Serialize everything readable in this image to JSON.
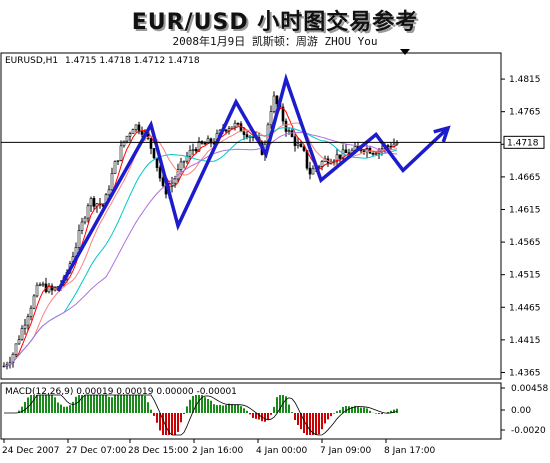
{
  "header": {
    "title": "EUR/USD  小时图交易参考",
    "subtitle": "2008年1月9日   凯斯顿：周游 ZHOU You"
  },
  "chart_data": [
    {
      "type": "candlestick",
      "symbol_label": "EURUSD,H1",
      "ohlc_label": "1.4715 1.4718 1.4712 1.4718",
      "current_price_label": "1.4718",
      "current_price": 1.4718,
      "ylim": [
        1.4355,
        1.4855
      ],
      "y_ticks": [
        "1.4815",
        "1.4765",
        "1.4715",
        "1.4665",
        "1.4615",
        "1.4565",
        "1.4515",
        "1.4465",
        "1.4415",
        "1.4365"
      ],
      "x_ticks": [
        "24 Dec 2007",
        "27 Dec 07:00",
        "28 Dec 15:00",
        "2 Jan 16:00",
        "4 Jan 00:00",
        "7 Jan 09:00",
        "8 Jan 17:00"
      ],
      "close_path": [
        [
          0,
          1.4375
        ],
        [
          8,
          1.439
        ],
        [
          20,
          1.444
        ],
        [
          35,
          1.45
        ],
        [
          48,
          1.449
        ],
        [
          60,
          1.4505
        ],
        [
          72,
          1.456
        ],
        [
          85,
          1.463
        ],
        [
          100,
          1.462
        ],
        [
          110,
          1.468
        ],
        [
          120,
          1.472
        ],
        [
          130,
          1.4745
        ],
        [
          140,
          1.4735
        ],
        [
          150,
          1.47
        ],
        [
          160,
          1.464
        ],
        [
          170,
          1.466
        ],
        [
          180,
          1.469
        ],
        [
          190,
          1.471
        ],
        [
          200,
          1.4715
        ],
        [
          210,
          1.472
        ],
        [
          220,
          1.474
        ],
        [
          230,
          1.4745
        ],
        [
          240,
          1.4735
        ],
        [
          250,
          1.4725
        ],
        [
          260,
          1.47
        ],
        [
          265,
          1.476
        ],
        [
          270,
          1.4785
        ],
        [
          275,
          1.477
        ],
        [
          282,
          1.474
        ],
        [
          290,
          1.472
        ],
        [
          300,
          1.47
        ],
        [
          305,
          1.467
        ],
        [
          312,
          1.468
        ],
        [
          320,
          1.469
        ],
        [
          330,
          1.4695
        ],
        [
          340,
          1.47
        ],
        [
          350,
          1.4705
        ],
        [
          360,
          1.471
        ],
        [
          370,
          1.4705
        ],
        [
          380,
          1.471
        ],
        [
          388,
          1.4715
        ],
        [
          395,
          1.4718
        ]
      ],
      "moving_averages": [
        {
          "color": "#ff0000",
          "lag": 4
        },
        {
          "color": "#ff8080",
          "lag": 10
        },
        {
          "color": "#00c8c8",
          "lag": 20
        },
        {
          "color": "#b070e0",
          "lag": 34
        }
      ],
      "projection_zigzag": [
        [
          55,
          1.449
        ],
        [
          148,
          1.4745
        ],
        [
          175,
          1.459
        ],
        [
          233,
          1.478
        ],
        [
          263,
          1.47
        ],
        [
          283,
          1.4815
        ],
        [
          318,
          1.466
        ],
        [
          373,
          1.473
        ],
        [
          400,
          1.4675
        ],
        [
          445,
          1.474
        ]
      ],
      "projection_color": "#1c1ccc"
    },
    {
      "type": "histogram",
      "label": "MACD(12,26,9) 0.00019 0.00019 0.00000 -0.00001",
      "ylim": [
        -0.0013,
        0.00058
      ],
      "y_ticks": [
        "0.00458",
        "0.00",
        "-0.0020"
      ],
      "histogram_color": "#1a8a1a",
      "signal_color": "#cc0000"
    }
  ]
}
